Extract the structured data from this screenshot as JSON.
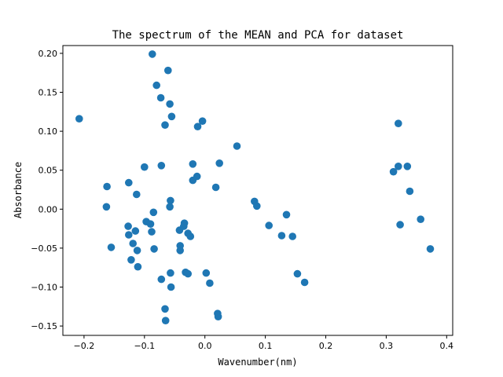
{
  "chart_data": {
    "type": "scatter",
    "title": "The spectrum of the MEAN and PCA for dataset",
    "xlabel": "Wavenumber(nm)",
    "ylabel": "Absorbance",
    "xlim": [
      -0.235,
      0.41
    ],
    "ylim": [
      -0.162,
      0.21
    ],
    "xticks": [
      -0.2,
      -0.1,
      0.0,
      0.1,
      0.2,
      0.3,
      0.4
    ],
    "xtick_labels": [
      "−0.2",
      "−0.1",
      "0.0",
      "0.1",
      "0.2",
      "0.3",
      "0.4"
    ],
    "yticks": [
      -0.15,
      -0.1,
      -0.05,
      0.0,
      0.05,
      0.1,
      0.15,
      0.2
    ],
    "ytick_labels": [
      "−0.15",
      "−0.10",
      "−0.05",
      "0.00",
      "0.05",
      "0.10",
      "0.15",
      "0.20"
    ],
    "grid": false,
    "marker_color": "#1f77b4",
    "points": [
      {
        "x": -0.208,
        "y": 0.116
      },
      {
        "x": -0.162,
        "y": 0.029
      },
      {
        "x": -0.163,
        "y": 0.003
      },
      {
        "x": -0.155,
        "y": -0.049
      },
      {
        "x": -0.126,
        "y": 0.034
      },
      {
        "x": -0.127,
        "y": -0.022
      },
      {
        "x": -0.126,
        "y": -0.033
      },
      {
        "x": -0.122,
        "y": -0.065
      },
      {
        "x": -0.119,
        "y": -0.044
      },
      {
        "x": -0.115,
        "y": -0.028
      },
      {
        "x": -0.113,
        "y": 0.019
      },
      {
        "x": -0.112,
        "y": -0.053
      },
      {
        "x": -0.111,
        "y": -0.074
      },
      {
        "x": -0.1,
        "y": 0.054
      },
      {
        "x": -0.097,
        "y": -0.016
      },
      {
        "x": -0.09,
        "y": -0.019
      },
      {
        "x": -0.088,
        "y": -0.029
      },
      {
        "x": -0.085,
        "y": -0.004
      },
      {
        "x": -0.084,
        "y": -0.051
      },
      {
        "x": -0.087,
        "y": 0.199
      },
      {
        "x": -0.08,
        "y": 0.159
      },
      {
        "x": -0.073,
        "y": 0.143
      },
      {
        "x": -0.072,
        "y": 0.056
      },
      {
        "x": -0.072,
        "y": -0.09
      },
      {
        "x": -0.066,
        "y": 0.108
      },
      {
        "x": -0.066,
        "y": -0.128
      },
      {
        "x": -0.065,
        "y": -0.143
      },
      {
        "x": -0.061,
        "y": 0.178
      },
      {
        "x": -0.058,
        "y": 0.135
      },
      {
        "x": -0.055,
        "y": 0.119
      },
      {
        "x": -0.057,
        "y": 0.011
      },
      {
        "x": -0.058,
        "y": 0.003
      },
      {
        "x": -0.057,
        "y": -0.082
      },
      {
        "x": -0.056,
        "y": -0.1
      },
      {
        "x": -0.042,
        "y": -0.027
      },
      {
        "x": -0.041,
        "y": -0.047
      },
      {
        "x": -0.041,
        "y": -0.053
      },
      {
        "x": -0.035,
        "y": -0.022
      },
      {
        "x": -0.034,
        "y": -0.018
      },
      {
        "x": -0.032,
        "y": -0.081
      },
      {
        "x": -0.028,
        "y": -0.031
      },
      {
        "x": -0.028,
        "y": -0.083
      },
      {
        "x": -0.024,
        "y": -0.035
      },
      {
        "x": -0.02,
        "y": 0.058
      },
      {
        "x": -0.02,
        "y": 0.037
      },
      {
        "x": -0.013,
        "y": 0.042
      },
      {
        "x": -0.012,
        "y": 0.106
      },
      {
        "x": -0.004,
        "y": 0.113
      },
      {
        "x": 0.002,
        "y": -0.082
      },
      {
        "x": 0.008,
        "y": -0.095
      },
      {
        "x": 0.018,
        "y": 0.028
      },
      {
        "x": 0.021,
        "y": -0.134
      },
      {
        "x": 0.022,
        "y": -0.138
      },
      {
        "x": 0.024,
        "y": 0.059
      },
      {
        "x": 0.053,
        "y": 0.081
      },
      {
        "x": 0.082,
        "y": 0.01
      },
      {
        "x": 0.086,
        "y": 0.004
      },
      {
        "x": 0.106,
        "y": -0.021
      },
      {
        "x": 0.127,
        "y": -0.034
      },
      {
        "x": 0.135,
        "y": -0.007
      },
      {
        "x": 0.145,
        "y": -0.035
      },
      {
        "x": 0.153,
        "y": -0.083
      },
      {
        "x": 0.165,
        "y": -0.094
      },
      {
        "x": 0.312,
        "y": 0.048
      },
      {
        "x": 0.32,
        "y": 0.055
      },
      {
        "x": 0.32,
        "y": 0.11
      },
      {
        "x": 0.323,
        "y": -0.02
      },
      {
        "x": 0.335,
        "y": 0.055
      },
      {
        "x": 0.339,
        "y": 0.023
      },
      {
        "x": 0.357,
        "y": -0.013
      },
      {
        "x": 0.373,
        "y": -0.051
      }
    ]
  }
}
